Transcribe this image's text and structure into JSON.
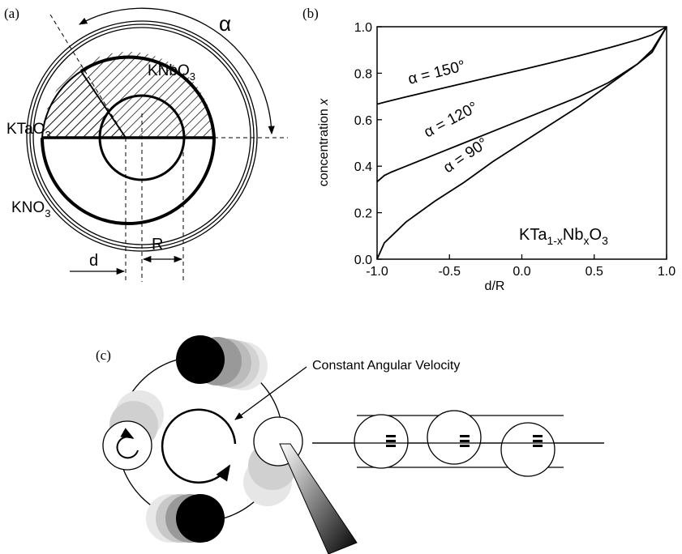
{
  "panel_labels": [
    "(a)",
    "(b)",
    "(c)"
  ],
  "panel_a": {
    "alpha": "α",
    "knbo3": [
      "KNbO",
      "3"
    ],
    "ktao3": [
      "KTaO",
      "3"
    ],
    "kno3": [
      "KNO",
      "3"
    ],
    "r": "R",
    "d": "d"
  },
  "panel_c": {
    "annotation": "Constant Angular Velocity"
  },
  "chart_data": {
    "type": "line",
    "xlabel": "d/R",
    "ylabel": [
      "concentration ",
      "x"
    ],
    "annotation": [
      "KTa",
      "1-x",
      "Nb",
      "x",
      "O",
      "3"
    ],
    "x": [
      -1,
      -0.95,
      -0.9,
      -0.8,
      -0.6,
      -0.4,
      -0.2,
      0,
      0.2,
      0.4,
      0.6,
      0.8,
      0.9,
      1
    ],
    "series": [
      {
        "name": "α = 150°",
        "color": "#000000",
        "values": [
          0.667,
          0.675,
          0.683,
          0.698,
          0.728,
          0.757,
          0.786,
          0.815,
          0.845,
          0.876,
          0.909,
          0.944,
          0.965,
          1
        ]
      },
      {
        "name": "α = 120°",
        "color": "#000000",
        "values": [
          0.333,
          0.36,
          0.375,
          0.4,
          0.45,
          0.5,
          0.55,
          0.6,
          0.65,
          0.7,
          0.76,
          0.84,
          0.89,
          1
        ]
      },
      {
        "name": "α = 90°",
        "color": "#000000",
        "values": [
          0,
          0.07,
          0.1,
          0.16,
          0.25,
          0.33,
          0.42,
          0.5,
          0.58,
          0.66,
          0.75,
          0.84,
          0.9,
          1
        ]
      }
    ],
    "xlim": [
      -1,
      1
    ],
    "xticks": [
      {
        "value": -1,
        "label": "-1.0"
      },
      {
        "value": -0.5,
        "label": "-0.5"
      },
      {
        "value": 0,
        "label": "0.0"
      },
      {
        "value": 0.5,
        "label": "0.5"
      },
      {
        "value": 1,
        "label": "1.0"
      }
    ],
    "ylim": [
      0,
      1
    ],
    "yticks": [
      {
        "value": 0,
        "label": "0.0"
      },
      {
        "value": 0.2,
        "label": "0.2"
      },
      {
        "value": 0.4,
        "label": "0.4"
      },
      {
        "value": 0.6,
        "label": "0.6"
      },
      {
        "value": 0.8,
        "label": "0.8"
      },
      {
        "value": 1,
        "label": "1.0"
      }
    ],
    "grid": false
  }
}
